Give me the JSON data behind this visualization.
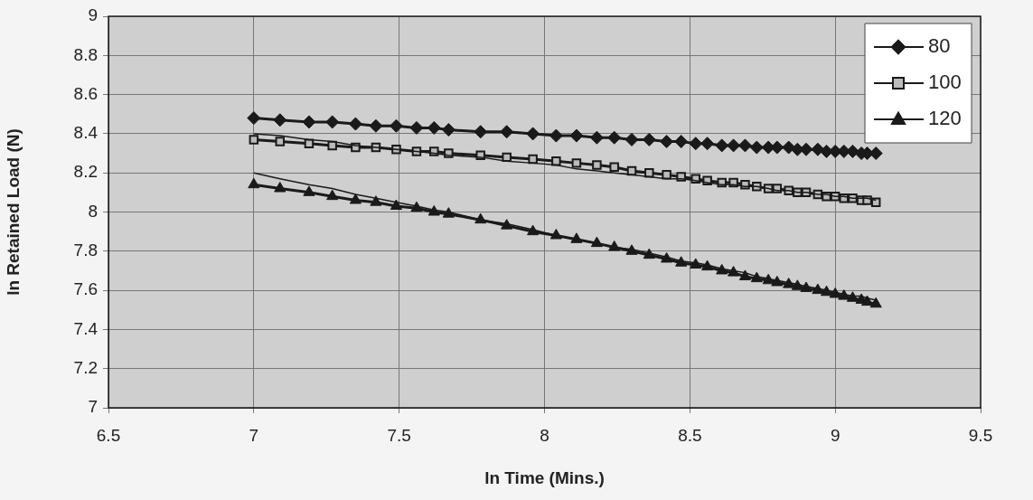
{
  "chart_data": {
    "type": "line",
    "xlabel": "ln Time (Mins.)",
    "ylabel": "ln Retained Load (N)",
    "xlim": [
      6.5,
      9.5
    ],
    "xticks": [
      6.5,
      7,
      7.5,
      8,
      8.5,
      9,
      9.5
    ],
    "ylim": [
      7,
      9
    ],
    "yticks": [
      7,
      7.2,
      7.4,
      7.6,
      7.8,
      8,
      8.2,
      8.4,
      8.6,
      8.8,
      9
    ],
    "grid": true,
    "legend": "top right",
    "line_style": "solid",
    "x": [
      7.0,
      7.09,
      7.19,
      7.27,
      7.35,
      7.42,
      7.49,
      7.56,
      7.62,
      7.67,
      7.78,
      7.87,
      7.96,
      8.04,
      8.11,
      8.18,
      8.24,
      8.3,
      8.36,
      8.42,
      8.47,
      8.52,
      8.56,
      8.61,
      8.65,
      8.69,
      8.73,
      8.77,
      8.8,
      8.84,
      8.87,
      8.9,
      8.94,
      8.97,
      9.0,
      9.03,
      9.06,
      9.09,
      9.11,
      9.14
    ],
    "series": [
      {
        "name": "80",
        "color": "#1a1a1a",
        "marker": "diamond",
        "values": [
          8.48,
          8.47,
          8.46,
          8.46,
          8.45,
          8.44,
          8.44,
          8.43,
          8.43,
          8.42,
          8.41,
          8.41,
          8.4,
          8.39,
          8.39,
          8.38,
          8.38,
          8.37,
          8.37,
          8.36,
          8.36,
          8.35,
          8.35,
          8.34,
          8.34,
          8.34,
          8.33,
          8.33,
          8.33,
          8.33,
          8.32,
          8.32,
          8.32,
          8.31,
          8.31,
          8.31,
          8.31,
          8.3,
          8.3,
          8.3
        ]
      },
      {
        "name": "100",
        "color": "#1a1a1a",
        "marker": "square",
        "values": [
          8.37,
          8.36,
          8.35,
          8.34,
          8.33,
          8.33,
          8.32,
          8.31,
          8.31,
          8.3,
          8.29,
          8.28,
          8.27,
          8.26,
          8.25,
          8.24,
          8.23,
          8.21,
          8.2,
          8.19,
          8.18,
          8.17,
          8.16,
          8.15,
          8.15,
          8.14,
          8.13,
          8.12,
          8.12,
          8.11,
          8.1,
          8.1,
          8.09,
          8.08,
          8.08,
          8.07,
          8.07,
          8.06,
          8.06,
          8.05
        ]
      },
      {
        "name": "120",
        "color": "#1a1a1a",
        "marker": "triangle",
        "values": [
          8.14,
          8.12,
          8.1,
          8.08,
          8.06,
          8.05,
          8.03,
          8.02,
          8.0,
          7.99,
          7.96,
          7.93,
          7.9,
          7.88,
          7.86,
          7.84,
          7.82,
          7.8,
          7.78,
          7.76,
          7.74,
          7.73,
          7.72,
          7.7,
          7.69,
          7.67,
          7.66,
          7.65,
          7.64,
          7.63,
          7.62,
          7.61,
          7.6,
          7.59,
          7.58,
          7.57,
          7.56,
          7.55,
          7.54,
          7.53
        ]
      },
      {
        "type": "line",
        "color": "#1a1a1a",
        "marker": "none",
        "values": [
          8.4,
          8.39,
          8.37,
          8.36,
          8.34,
          8.33,
          8.32,
          8.31,
          8.3,
          8.29,
          8.28,
          8.26,
          8.25,
          8.24,
          8.22,
          8.21,
          8.2,
          8.19,
          8.18,
          8.17,
          8.17,
          8.16,
          8.15,
          8.14,
          8.14,
          8.13,
          8.13,
          8.12,
          8.11,
          8.11,
          8.1,
          8.1,
          8.09,
          8.09,
          8.08,
          8.08,
          8.07,
          8.07,
          8.07,
          8.06
        ]
      },
      {
        "type": "line",
        "color": "#1a1a1a",
        "marker": "none",
        "values": [
          8.2,
          8.17,
          8.14,
          8.12,
          8.09,
          8.07,
          8.05,
          8.03,
          8.01,
          8.0,
          7.96,
          7.94,
          7.91,
          7.88,
          7.86,
          7.84,
          7.82,
          7.81,
          7.79,
          7.77,
          7.75,
          7.74,
          7.73,
          7.71,
          7.7,
          7.69,
          7.67,
          7.66,
          7.65,
          7.64,
          7.63,
          7.62,
          7.61,
          7.6,
          7.59,
          7.58,
          7.57,
          7.57,
          7.56,
          7.55
        ]
      }
    ]
  }
}
